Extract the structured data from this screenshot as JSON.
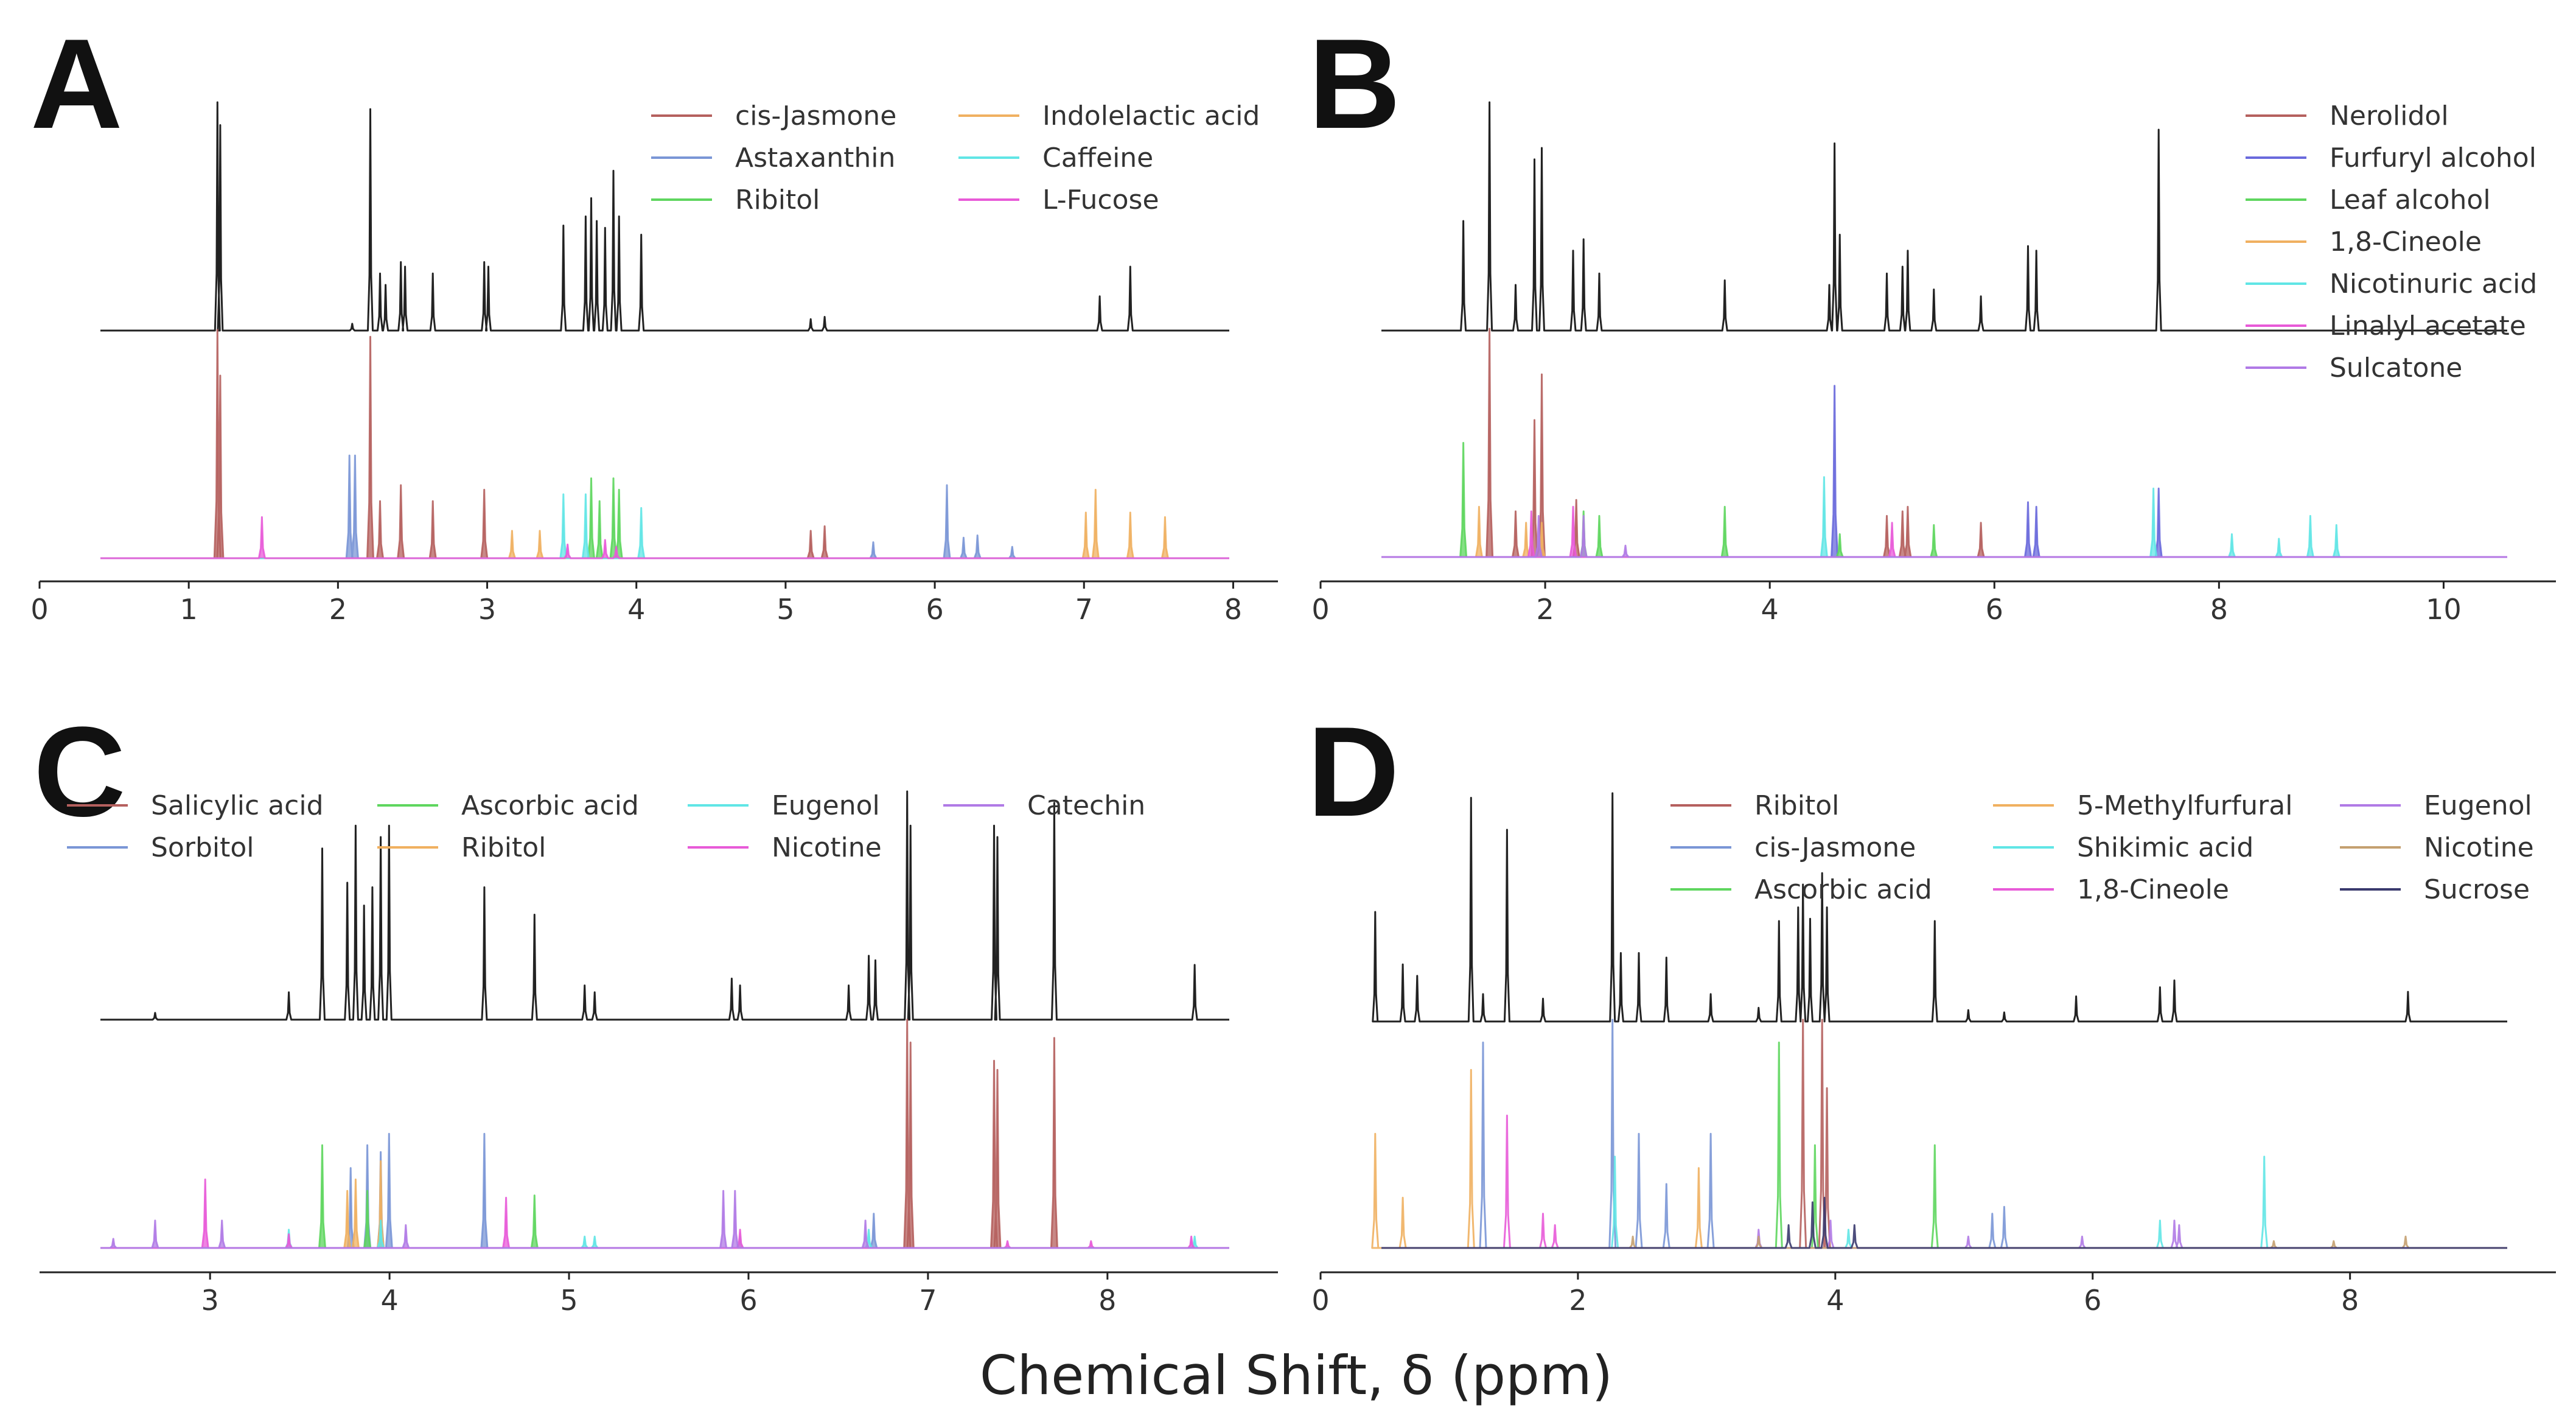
{
  "figure": {
    "xlabel": "Chemical Shift, δ (ppm)"
  },
  "chart_data": [
    {
      "panel": "A",
      "type": "line",
      "xlim": [
        0,
        8.3
      ],
      "xticks": [
        0,
        1,
        2,
        3,
        4,
        5,
        6,
        7,
        8
      ],
      "mixture_peaks": [
        [
          0.93,
          1.0
        ],
        [
          0.95,
          0.9
        ],
        [
          1.9,
          0.03
        ],
        [
          2.03,
          0.97
        ],
        [
          2.1,
          0.25
        ],
        [
          2.14,
          0.2
        ],
        [
          2.25,
          0.3
        ],
        [
          2.28,
          0.28
        ],
        [
          2.48,
          0.25
        ],
        [
          2.85,
          0.3
        ],
        [
          2.88,
          0.28
        ],
        [
          3.42,
          0.46
        ],
        [
          3.58,
          0.5
        ],
        [
          3.62,
          0.58
        ],
        [
          3.66,
          0.48
        ],
        [
          3.72,
          0.45
        ],
        [
          3.78,
          0.7
        ],
        [
          3.82,
          0.5
        ],
        [
          3.98,
          0.42
        ],
        [
          5.2,
          0.05
        ],
        [
          5.3,
          0.06
        ],
        [
          7.28,
          0.15
        ],
        [
          7.5,
          0.28
        ]
      ],
      "series": [
        {
          "name": "cis-Jasmone",
          "color": "#b5605e",
          "peaks": [
            [
              0.93,
              1.0
            ],
            [
              0.95,
              0.8
            ],
            [
              2.03,
              0.97
            ],
            [
              2.1,
              0.25
            ],
            [
              2.25,
              0.32
            ],
            [
              2.48,
              0.25
            ],
            [
              2.85,
              0.3
            ],
            [
              5.2,
              0.12
            ],
            [
              5.3,
              0.14
            ]
          ]
        },
        {
          "name": "Astaxanthin",
          "color": "#7a96d6",
          "peaks": [
            [
              1.88,
              0.45
            ],
            [
              1.92,
              0.45
            ],
            [
              5.65,
              0.07
            ],
            [
              6.18,
              0.32
            ],
            [
              6.3,
              0.09
            ],
            [
              6.4,
              0.1
            ],
            [
              6.65,
              0.05
            ]
          ]
        },
        {
          "name": "Ribitol",
          "color": "#5ed65e",
          "peaks": [
            [
              3.62,
              0.35
            ],
            [
              3.68,
              0.25
            ],
            [
              3.78,
              0.35
            ],
            [
              3.82,
              0.3
            ]
          ]
        },
        {
          "name": "Indolelactic acid",
          "color": "#f0b060",
          "peaks": [
            [
              3.05,
              0.12
            ],
            [
              3.25,
              0.12
            ],
            [
              7.18,
              0.2
            ],
            [
              7.25,
              0.3
            ],
            [
              7.5,
              0.2
            ],
            [
              7.75,
              0.18
            ]
          ]
        },
        {
          "name": "Caffeine",
          "color": "#60e6e6",
          "peaks": [
            [
              3.42,
              0.28
            ],
            [
              3.58,
              0.28
            ],
            [
              3.98,
              0.22
            ]
          ]
        },
        {
          "name": "L-Fucose",
          "color": "#e85ad8",
          "peaks": [
            [
              1.25,
              0.18
            ],
            [
              3.45,
              0.06
            ],
            [
              3.72,
              0.08
            ],
            [
              3.8,
              0.05
            ]
          ]
        }
      ]
    },
    {
      "panel": "B",
      "type": "line",
      "xlim": [
        0,
        11
      ],
      "xticks": [
        0,
        2,
        4,
        6,
        8,
        10
      ],
      "mixture_peaks": [
        [
          0.9,
          0.48
        ],
        [
          1.15,
          1.0
        ],
        [
          1.4,
          0.2
        ],
        [
          1.58,
          0.75
        ],
        [
          1.65,
          0.8
        ],
        [
          1.95,
          0.35
        ],
        [
          2.05,
          0.4
        ],
        [
          2.2,
          0.25
        ],
        [
          3.4,
          0.22
        ],
        [
          4.4,
          0.2
        ],
        [
          4.45,
          0.82
        ],
        [
          4.5,
          0.42
        ],
        [
          4.95,
          0.25
        ],
        [
          5.1,
          0.28
        ],
        [
          5.15,
          0.35
        ],
        [
          5.4,
          0.18
        ],
        [
          5.85,
          0.15
        ],
        [
          6.3,
          0.37
        ],
        [
          6.38,
          0.35
        ],
        [
          7.55,
          0.88
        ]
      ],
      "series": [
        {
          "name": "Nerolidol",
          "color": "#b5605e",
          "peaks": [
            [
              1.15,
              1.0
            ],
            [
              1.4,
              0.2
            ],
            [
              1.58,
              0.6
            ],
            [
              1.65,
              0.8
            ],
            [
              1.98,
              0.25
            ],
            [
              4.95,
              0.18
            ],
            [
              5.1,
              0.2
            ],
            [
              5.15,
              0.22
            ],
            [
              5.85,
              0.15
            ]
          ]
        },
        {
          "name": "Furfuryl alcohol",
          "color": "#6a6adc",
          "peaks": [
            [
              4.45,
              0.75
            ],
            [
              6.3,
              0.24
            ],
            [
              6.38,
              0.22
            ],
            [
              7.55,
              0.3
            ]
          ]
        },
        {
          "name": "Leaf alcohol",
          "color": "#5ed65e",
          "peaks": [
            [
              0.9,
              0.5
            ],
            [
              2.05,
              0.2
            ],
            [
              2.2,
              0.18
            ],
            [
              3.4,
              0.22
            ],
            [
              4.5,
              0.1
            ],
            [
              5.4,
              0.14
            ]
          ]
        },
        {
          "name": "1,8-Cineole",
          "color": "#f0b060",
          "peaks": [
            [
              1.05,
              0.22
            ],
            [
              1.5,
              0.15
            ],
            [
              1.65,
              0.15
            ]
          ]
        },
        {
          "name": "Nicotinuric acid",
          "color": "#60e6e6",
          "peaks": [
            [
              4.35,
              0.35
            ],
            [
              7.5,
              0.3
            ],
            [
              8.25,
              0.1
            ],
            [
              8.7,
              0.08
            ],
            [
              9.0,
              0.18
            ],
            [
              9.25,
              0.14
            ]
          ]
        },
        {
          "name": "Linalyl acetate",
          "color": "#e85ad8",
          "peaks": [
            [
              1.55,
              0.2
            ],
            [
              1.95,
              0.22
            ],
            [
              5.0,
              0.15
            ]
          ]
        },
        {
          "name": "Sulcatone",
          "color": "#b07ae6",
          "peaks": [
            [
              1.62,
              0.18
            ],
            [
              2.05,
              0.18
            ],
            [
              2.45,
              0.05
            ]
          ]
        }
      ]
    },
    {
      "panel": "C",
      "type": "line",
      "xlim": [
        2.05,
        8.95
      ],
      "xticks": [
        3,
        4,
        5,
        6,
        7,
        8
      ],
      "mixture_peaks": [
        [
          2.45,
          0.03
        ],
        [
          3.25,
          0.12
        ],
        [
          3.45,
          0.75
        ],
        [
          3.6,
          0.6
        ],
        [
          3.65,
          0.85
        ],
        [
          3.7,
          0.5
        ],
        [
          3.75,
          0.58
        ],
        [
          3.8,
          0.8
        ],
        [
          3.85,
          0.85
        ],
        [
          4.42,
          0.58
        ],
        [
          4.72,
          0.46
        ],
        [
          5.02,
          0.15
        ],
        [
          5.08,
          0.12
        ],
        [
          5.9,
          0.18
        ],
        [
          5.95,
          0.15
        ],
        [
          6.6,
          0.15
        ],
        [
          6.72,
          0.28
        ],
        [
          6.76,
          0.26
        ],
        [
          6.95,
          1.0
        ],
        [
          6.97,
          0.85
        ],
        [
          7.47,
          0.85
        ],
        [
          7.49,
          0.8
        ],
        [
          7.83,
          0.95
        ],
        [
          8.67,
          0.24
        ]
      ],
      "series": [
        {
          "name": "Salicylic acid",
          "color": "#b5605e",
          "peaks": [
            [
              6.95,
              1.0
            ],
            [
              6.97,
              0.9
            ],
            [
              7.47,
              0.82
            ],
            [
              7.49,
              0.78
            ],
            [
              7.83,
              0.92
            ]
          ]
        },
        {
          "name": "Sorbitol",
          "color": "#7a96d6",
          "peaks": [
            [
              3.62,
              0.35
            ],
            [
              3.72,
              0.45
            ],
            [
              3.8,
              0.42
            ],
            [
              3.85,
              0.5
            ],
            [
              4.42,
              0.5
            ],
            [
              6.75,
              0.15
            ]
          ]
        },
        {
          "name": "Ascorbic acid",
          "color": "#5ed65e",
          "peaks": [
            [
              3.45,
              0.45
            ],
            [
              3.72,
              0.25
            ],
            [
              4.72,
              0.23
            ]
          ]
        },
        {
          "name": "Ribitol",
          "color": "#f0b060",
          "peaks": [
            [
              3.6,
              0.25
            ],
            [
              3.65,
              0.3
            ],
            [
              3.8,
              0.38
            ]
          ]
        },
        {
          "name": "Eugenol",
          "color": "#60e6e6",
          "peaks": [
            [
              3.25,
              0.08
            ],
            [
              3.8,
              0.12
            ],
            [
              5.02,
              0.05
            ],
            [
              5.08,
              0.05
            ],
            [
              5.95,
              0.05
            ],
            [
              6.72,
              0.08
            ],
            [
              8.67,
              0.05
            ]
          ]
        },
        {
          "name": "Nicotine",
          "color": "#e85ad8",
          "peaks": [
            [
              2.75,
              0.3
            ],
            [
              3.25,
              0.06
            ],
            [
              4.55,
              0.22
            ],
            [
              5.95,
              0.08
            ],
            [
              7.55,
              0.03
            ],
            [
              8.05,
              0.03
            ],
            [
              8.65,
              0.05
            ]
          ]
        },
        {
          "name": "Catechin",
          "color": "#b07ae6",
          "peaks": [
            [
              2.2,
              0.04
            ],
            [
              2.45,
              0.12
            ],
            [
              2.85,
              0.12
            ],
            [
              3.95,
              0.1
            ],
            [
              5.85,
              0.25
            ],
            [
              5.92,
              0.25
            ],
            [
              6.7,
              0.12
            ]
          ]
        }
      ]
    },
    {
      "panel": "D",
      "type": "line",
      "xlim": [
        0,
        9.6
      ],
      "xticks": [
        0,
        2,
        4,
        6,
        8
      ],
      "mixture_peaks": [
        [
          0.05,
          0.48
        ],
        [
          0.28,
          0.25
        ],
        [
          0.4,
          0.2
        ],
        [
          0.85,
          0.98
        ],
        [
          0.95,
          0.12
        ],
        [
          1.15,
          0.84
        ],
        [
          1.45,
          0.1
        ],
        [
          2.03,
          1.0
        ],
        [
          2.1,
          0.3
        ],
        [
          2.25,
          0.3
        ],
        [
          2.48,
          0.28
        ],
        [
          2.85,
          0.12
        ],
        [
          3.25,
          0.06
        ],
        [
          3.42,
          0.44
        ],
        [
          3.58,
          0.5
        ],
        [
          3.62,
          0.6
        ],
        [
          3.68,
          0.45
        ],
        [
          3.78,
          0.65
        ],
        [
          3.82,
          0.5
        ],
        [
          4.72,
          0.44
        ],
        [
          5.0,
          0.05
        ],
        [
          5.3,
          0.04
        ],
        [
          5.9,
          0.11
        ],
        [
          6.6,
          0.15
        ],
        [
          6.72,
          0.18
        ],
        [
          8.67,
          0.13
        ]
      ],
      "series": [
        {
          "name": "Ribitol",
          "color": "#b5605e",
          "peaks": [
            [
              3.62,
              1.0
            ],
            [
              3.78,
              1.0
            ],
            [
              3.82,
              0.7
            ]
          ]
        },
        {
          "name": "cis-Jasmone",
          "color": "#7a96d6",
          "peaks": [
            [
              0.95,
              0.9
            ],
            [
              2.03,
              1.0
            ],
            [
              2.25,
              0.5
            ],
            [
              2.48,
              0.28
            ],
            [
              2.85,
              0.5
            ],
            [
              5.2,
              0.15
            ],
            [
              5.3,
              0.18
            ]
          ]
        },
        {
          "name": "Ascorbic acid",
          "color": "#5ed65e",
          "peaks": [
            [
              3.42,
              0.9
            ],
            [
              3.72,
              0.45
            ],
            [
              4.72,
              0.45
            ]
          ]
        },
        {
          "name": "5-Methylfurfural",
          "color": "#f0b060",
          "peaks": [
            [
              0.05,
              0.5
            ],
            [
              0.28,
              0.22
            ],
            [
              0.85,
              0.78
            ],
            [
              2.75,
              0.35
            ]
          ]
        },
        {
          "name": "Shikimic acid",
          "color": "#60e6e6",
          "peaks": [
            [
              2.05,
              0.4
            ],
            [
              4.0,
              0.08
            ],
            [
              6.6,
              0.12
            ],
            [
              7.47,
              0.4
            ]
          ]
        },
        {
          "name": "1,8-Cineole",
          "color": "#e85ad8",
          "peaks": [
            [
              1.15,
              0.58
            ],
            [
              1.45,
              0.15
            ],
            [
              1.55,
              0.1
            ]
          ]
        },
        {
          "name": "Eugenol",
          "color": "#b07ae6",
          "peaks": [
            [
              3.25,
              0.08
            ],
            [
              3.85,
              0.12
            ],
            [
              5.0,
              0.05
            ],
            [
              5.95,
              0.05
            ],
            [
              6.72,
              0.12
            ],
            [
              6.76,
              0.1
            ]
          ]
        },
        {
          "name": "Nicotine",
          "color": "#c4a070",
          "peaks": [
            [
              2.2,
              0.05
            ],
            [
              3.25,
              0.05
            ],
            [
              7.55,
              0.03
            ],
            [
              8.05,
              0.03
            ],
            [
              8.65,
              0.05
            ]
          ]
        },
        {
          "name": "Sucrose",
          "color": "#3a3a6e",
          "peaks": [
            [
              3.5,
              0.1
            ],
            [
              3.7,
              0.2
            ],
            [
              3.8,
              0.22
            ],
            [
              4.05,
              0.1
            ]
          ]
        }
      ]
    }
  ]
}
